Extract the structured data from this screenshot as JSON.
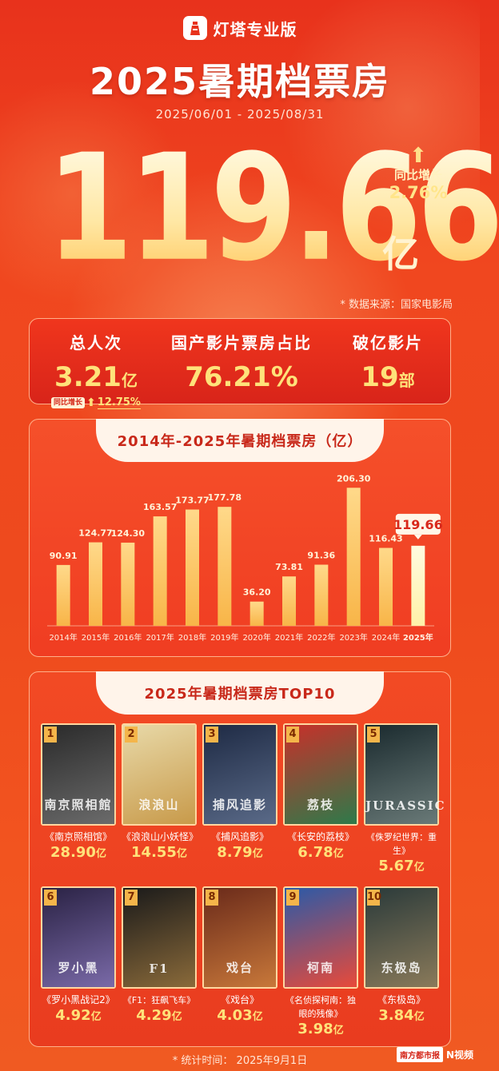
{
  "brand": {
    "name": "灯塔专业版",
    "logo_icon": "lighthouse-icon"
  },
  "header": {
    "title": "2025暑期档票房",
    "date_range": "2025/06/01 - 2025/08/31"
  },
  "total": {
    "value": "119.66",
    "unit": "亿",
    "growth_label": "同比增长",
    "growth_value": "2.76%",
    "source": "* 数据来源：国家电影局"
  },
  "stats": {
    "admissions": {
      "label": "总人次",
      "value": "3.21",
      "unit": "亿",
      "growth_label": "同比增长",
      "growth_value": "12.75%"
    },
    "domestic_share": {
      "label": "国产影片票房占比",
      "value": "76.21%"
    },
    "billion_films": {
      "label": "破亿影片",
      "value": "19",
      "unit": "部"
    }
  },
  "chart_title": "2014年-2025年暑期档票房（亿）",
  "chart_data": {
    "type": "bar",
    "title": "2014年-2025年暑期档票房（亿）",
    "categories": [
      "2014年",
      "2015年",
      "2016年",
      "2017年",
      "2018年",
      "2019年",
      "2020年",
      "2021年",
      "2022年",
      "2023年",
      "2024年",
      "2025年"
    ],
    "values": [
      90.91,
      124.77,
      124.3,
      163.57,
      173.77,
      177.78,
      36.2,
      73.81,
      91.36,
      206.3,
      116.43,
      119.66
    ],
    "value_labels": [
      "90.91",
      "124.77",
      "124.30",
      "163.57",
      "173.77",
      "177.78",
      "36.20",
      "73.81",
      "91.36",
      "206.30",
      "116.43",
      "119.66"
    ],
    "highlight_index": 11,
    "ylim": [
      0,
      215
    ],
    "colors": {
      "bar": "#f8b548",
      "bar_top": "#ffd98a",
      "highlight": "#fff1a8"
    }
  },
  "top10": {
    "title": "2025年暑期档票房TOP10",
    "movies": [
      {
        "rank": "1",
        "title": "《南京照相馆》",
        "gross": "28.90",
        "unit": "亿",
        "glyph": "南京照相館",
        "c1": "#2a2a2a",
        "c2": "#6b6b6b"
      },
      {
        "rank": "2",
        "title": "《浪浪山小妖怪》",
        "gross": "14.55",
        "unit": "亿",
        "glyph": "浪浪山",
        "c1": "#e8d9a8",
        "c2": "#c89a4a"
      },
      {
        "rank": "3",
        "title": "《捕风追影》",
        "gross": "8.79",
        "unit": "亿",
        "glyph": "捕风追影",
        "c1": "#1e2a44",
        "c2": "#5a6a88"
      },
      {
        "rank": "4",
        "title": "《长安的荔枝》",
        "gross": "6.78",
        "unit": "亿",
        "glyph": "荔枝",
        "c1": "#c8302a",
        "c2": "#2e7a4a"
      },
      {
        "rank": "5",
        "title": "《侏罗纪世界：重生》",
        "gross": "5.67",
        "unit": "亿",
        "glyph": "JURASSIC",
        "c1": "#1a2a2e",
        "c2": "#6a7a78"
      },
      {
        "rank": "6",
        "title": "《罗小黑战记2》",
        "gross": "4.92",
        "unit": "亿",
        "glyph": "罗小黑",
        "c1": "#2a2244",
        "c2": "#7a6aa8"
      },
      {
        "rank": "7",
        "title": "《F1：狂飙飞车》",
        "gross": "4.29",
        "unit": "亿",
        "glyph": "F1",
        "c1": "#1a1a1a",
        "c2": "#8a6a3a"
      },
      {
        "rank": "8",
        "title": "《戏台》",
        "gross": "4.03",
        "unit": "亿",
        "glyph": "戏台",
        "c1": "#6a2a1a",
        "c2": "#c8783a"
      },
      {
        "rank": "9",
        "title": "《名侦探柯南：独眼的残像》",
        "gross": "3.98",
        "unit": "亿",
        "glyph": "柯南",
        "c1": "#2a5aa8",
        "c2": "#e84a3a"
      },
      {
        "rank": "10",
        "title": "《东极岛》",
        "gross": "3.84",
        "unit": "亿",
        "glyph": "东极岛",
        "c1": "#2a3a3a",
        "c2": "#8a7a5a"
      }
    ]
  },
  "footer": {
    "stat_time": "* 统计时间： 2025年9月1日",
    "logo_text_1": "南方都市报",
    "logo_text_2": "N视频"
  }
}
